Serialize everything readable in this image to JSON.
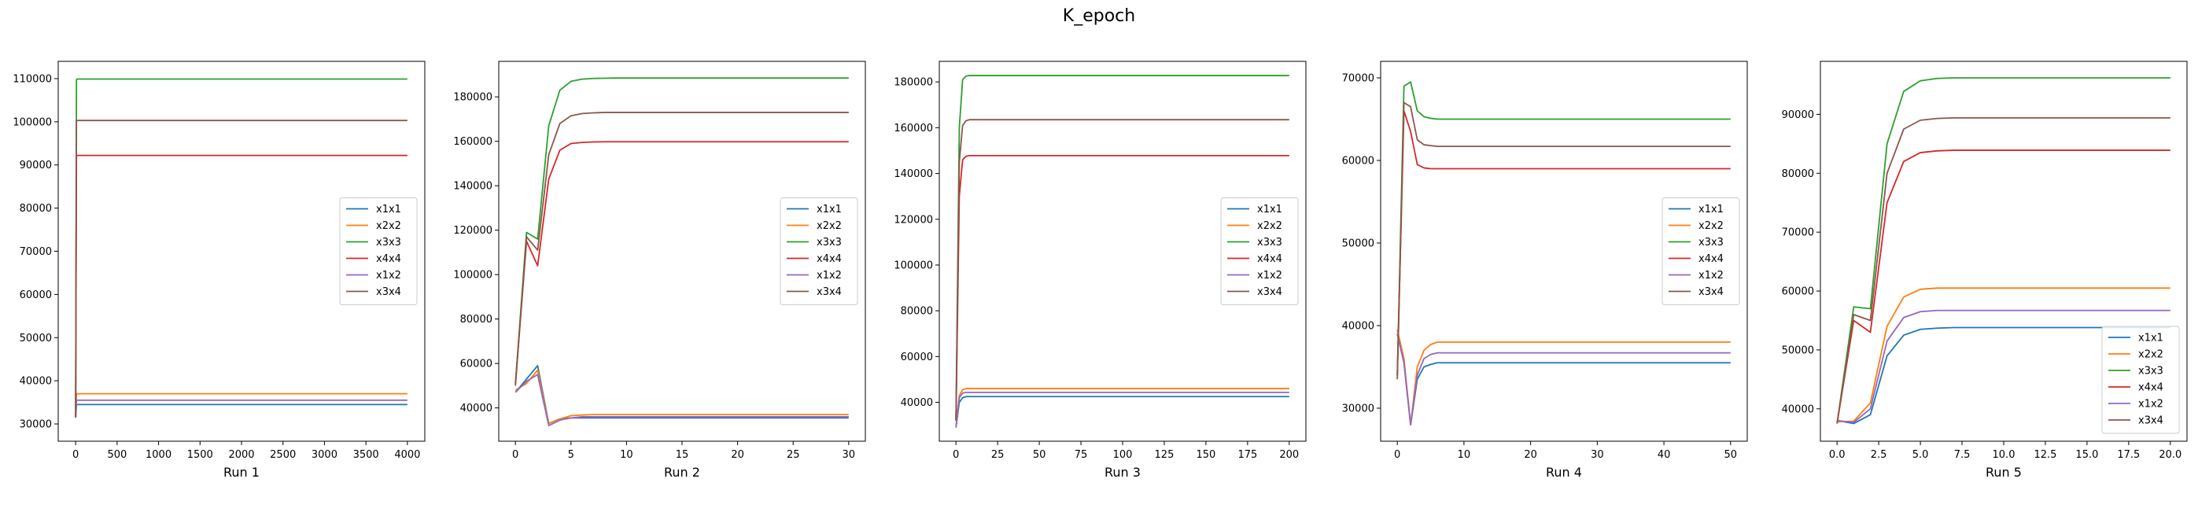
{
  "figure": {
    "title": "K_epoch"
  },
  "colors": {
    "x1x1": "#1f77b4",
    "x2x2": "#ff7f0e",
    "x3x3": "#2ca02c",
    "x4x4": "#d62728",
    "x1x2": "#9467bd",
    "x3x4": "#8c564b"
  },
  "chart_data": [
    {
      "type": "line",
      "title": "",
      "xlabel": "Run 1",
      "ylabel": "",
      "xlim": [
        -210,
        4210
      ],
      "ylim": [
        26000,
        114000
      ],
      "xticks": [
        0,
        500,
        1000,
        1500,
        2000,
        2500,
        3000,
        3500,
        4000
      ],
      "yticks": [
        30000,
        40000,
        50000,
        60000,
        70000,
        80000,
        90000,
        100000,
        110000
      ],
      "legend_loc": "center-right",
      "series": [
        {
          "name": "x1x1",
          "x": [
            0,
            10,
            20,
            4000
          ],
          "y": [
            31500,
            34500,
            34500,
            34500
          ]
        },
        {
          "name": "x2x2",
          "x": [
            0,
            10,
            20,
            4000
          ],
          "y": [
            32000,
            37000,
            37000,
            37000
          ]
        },
        {
          "name": "x3x3",
          "x": [
            0,
            10,
            20,
            4000
          ],
          "y": [
            31500,
            109800,
            109900,
            109900
          ]
        },
        {
          "name": "x4x4",
          "x": [
            0,
            10,
            20,
            4000
          ],
          "y": [
            31500,
            92200,
            92200,
            92200
          ]
        },
        {
          "name": "x1x2",
          "x": [
            0,
            10,
            20,
            4000
          ],
          "y": [
            31500,
            35500,
            35500,
            35500
          ]
        },
        {
          "name": "x3x4",
          "x": [
            0,
            10,
            20,
            4000
          ],
          "y": [
            31500,
            100200,
            100300,
            100300
          ]
        }
      ]
    },
    {
      "type": "line",
      "title": "",
      "xlabel": "Run 2",
      "ylabel": "",
      "xlim": [
        -1.5,
        31.5
      ],
      "ylim": [
        25000,
        196000
      ],
      "xticks": [
        0,
        5,
        10,
        15,
        20,
        25,
        30
      ],
      "yticks": [
        40000,
        60000,
        80000,
        100000,
        120000,
        140000,
        160000,
        180000
      ],
      "legend_loc": "center-right",
      "series": [
        {
          "name": "x1x1",
          "x": [
            0,
            1,
            2,
            3,
            4,
            5,
            6,
            7,
            8,
            9,
            10,
            30
          ],
          "y": [
            47000,
            53000,
            59000,
            33000,
            35000,
            35500,
            35500,
            35500,
            35500,
            35500,
            35500,
            35500
          ]
        },
        {
          "name": "x2x2",
          "x": [
            0,
            1,
            2,
            3,
            4,
            5,
            6,
            7,
            8,
            9,
            10,
            30
          ],
          "y": [
            48000,
            51000,
            57000,
            33000,
            35000,
            36500,
            36800,
            37000,
            37000,
            37000,
            37000,
            37000
          ]
        },
        {
          "name": "x3x3",
          "x": [
            0,
            1,
            2,
            3,
            4,
            5,
            6,
            7,
            8,
            9,
            10,
            30
          ],
          "y": [
            51000,
            119000,
            116000,
            167000,
            183000,
            187000,
            188000,
            188300,
            188400,
            188500,
            188500,
            188500
          ]
        },
        {
          "name": "x4x4",
          "x": [
            0,
            1,
            2,
            3,
            4,
            5,
            6,
            7,
            8,
            9,
            10,
            30
          ],
          "y": [
            51000,
            115000,
            104000,
            143000,
            156000,
            159000,
            159500,
            159700,
            159800,
            159800,
            159800,
            159800
          ]
        },
        {
          "name": "x1x2",
          "x": [
            0,
            1,
            2,
            3,
            4,
            5,
            6,
            7,
            8,
            9,
            10,
            30
          ],
          "y": [
            47000,
            52000,
            55000,
            32000,
            34500,
            35500,
            36000,
            36000,
            36000,
            36000,
            36000,
            36000
          ]
        },
        {
          "name": "x3x4",
          "x": [
            0,
            1,
            2,
            3,
            4,
            5,
            6,
            7,
            8,
            9,
            10,
            30
          ],
          "y": [
            50000,
            117000,
            111000,
            154000,
            168000,
            171500,
            172500,
            172800,
            173000,
            173000,
            173000,
            173000
          ]
        }
      ]
    },
    {
      "type": "line",
      "title": "",
      "xlabel": "Run 3",
      "ylabel": "",
      "xlim": [
        -10,
        210
      ],
      "ylim": [
        23000,
        189000
      ],
      "xticks": [
        0,
        25,
        50,
        75,
        100,
        125,
        150,
        175,
        200
      ],
      "yticks": [
        40000,
        60000,
        80000,
        100000,
        120000,
        140000,
        160000,
        180000
      ],
      "legend_loc": "center-right",
      "series": [
        {
          "name": "x1x1",
          "x": [
            0,
            2,
            4,
            6,
            8,
            10,
            200
          ],
          "y": [
            29000,
            40000,
            42000,
            42500,
            42500,
            42500,
            42500
          ]
        },
        {
          "name": "x2x2",
          "x": [
            0,
            2,
            4,
            6,
            8,
            10,
            200
          ],
          "y": [
            29000,
            43000,
            45500,
            46000,
            46000,
            46000,
            46000
          ]
        },
        {
          "name": "x3x3",
          "x": [
            0,
            2,
            4,
            6,
            8,
            10,
            200
          ],
          "y": [
            32000,
            160000,
            181000,
            182500,
            182800,
            182800,
            182800
          ]
        },
        {
          "name": "x4x4",
          "x": [
            0,
            2,
            4,
            6,
            8,
            10,
            200
          ],
          "y": [
            32000,
            130000,
            146000,
            147500,
            147800,
            147800,
            147800
          ]
        },
        {
          "name": "x1x2",
          "x": [
            0,
            2,
            4,
            6,
            8,
            10,
            200
          ],
          "y": [
            29000,
            42000,
            44000,
            44300,
            44300,
            44300,
            44300
          ]
        },
        {
          "name": "x3x4",
          "x": [
            0,
            2,
            4,
            6,
            8,
            10,
            200
          ],
          "y": [
            32000,
            145000,
            161000,
            163000,
            163500,
            163500,
            163500
          ]
        }
      ]
    },
    {
      "type": "line",
      "title": "",
      "xlabel": "Run 4",
      "ylabel": "",
      "xlim": [
        -2.5,
        52.5
      ],
      "ylim": [
        26000,
        72000
      ],
      "xticks": [
        0,
        10,
        20,
        30,
        40,
        50
      ],
      "yticks": [
        30000,
        40000,
        50000,
        60000,
        70000
      ],
      "legend_loc": "center-right",
      "series": [
        {
          "name": "x1x1",
          "x": [
            0,
            1,
            2,
            3,
            4,
            5,
            6,
            7,
            8,
            9,
            10,
            50
          ],
          "y": [
            39000,
            35500,
            28000,
            33500,
            35000,
            35300,
            35500,
            35500,
            35500,
            35500,
            35500,
            35500
          ]
        },
        {
          "name": "x2x2",
          "x": [
            0,
            1,
            2,
            3,
            4,
            5,
            6,
            7,
            8,
            9,
            10,
            50
          ],
          "y": [
            39500,
            36000,
            28000,
            35000,
            37000,
            37700,
            38000,
            38000,
            38000,
            38000,
            38000,
            38000
          ]
        },
        {
          "name": "x3x3",
          "x": [
            0,
            1,
            2,
            3,
            4,
            5,
            6,
            7,
            8,
            9,
            10,
            50
          ],
          "y": [
            34000,
            69000,
            69500,
            66000,
            65300,
            65100,
            65000,
            65000,
            65000,
            65000,
            65000,
            65000
          ]
        },
        {
          "name": "x4x4",
          "x": [
            0,
            1,
            2,
            3,
            4,
            5,
            6,
            7,
            8,
            9,
            10,
            50
          ],
          "y": [
            34000,
            66000,
            63500,
            59500,
            59100,
            59000,
            59000,
            59000,
            59000,
            59000,
            59000,
            59000
          ]
        },
        {
          "name": "x1x2",
          "x": [
            0,
            1,
            2,
            3,
            4,
            5,
            6,
            7,
            8,
            9,
            10,
            50
          ],
          "y": [
            39000,
            35500,
            28000,
            34000,
            36000,
            36500,
            36700,
            36700,
            36700,
            36700,
            36700,
            36700
          ]
        },
        {
          "name": "x3x4",
          "x": [
            0,
            1,
            2,
            3,
            4,
            5,
            6,
            7,
            8,
            9,
            10,
            50
          ],
          "y": [
            33500,
            67000,
            66500,
            62500,
            61900,
            61800,
            61700,
            61700,
            61700,
            61700,
            61700,
            61700
          ]
        }
      ]
    },
    {
      "type": "line",
      "title": "",
      "xlabel": "Run 5",
      "ylabel": "",
      "xlim": [
        -1.0,
        21.0
      ],
      "ylim": [
        34500,
        99000
      ],
      "xticks": [
        0.0,
        2.5,
        5.0,
        7.5,
        10.0,
        12.5,
        15.0,
        17.5,
        20.0
      ],
      "xtick_labels": [
        "0.0",
        "2.5",
        "5.0",
        "7.5",
        "10.0",
        "12.5",
        "15.0",
        "17.5",
        "20.0"
      ],
      "yticks": [
        40000,
        50000,
        60000,
        70000,
        80000,
        90000
      ],
      "legend_loc": "bottom-right",
      "series": [
        {
          "name": "x1x1",
          "x": [
            0,
            1,
            2,
            3,
            4,
            5,
            6,
            7,
            8,
            9,
            10,
            20
          ],
          "y": [
            38000,
            37500,
            39000,
            49000,
            52500,
            53500,
            53700,
            53800,
            53800,
            53800,
            53800,
            53800
          ]
        },
        {
          "name": "x2x2",
          "x": [
            0,
            1,
            2,
            3,
            4,
            5,
            6,
            7,
            8,
            9,
            10,
            20
          ],
          "y": [
            37800,
            37900,
            41000,
            54000,
            59000,
            60300,
            60500,
            60500,
            60500,
            60500,
            60500,
            60500
          ]
        },
        {
          "name": "x3x3",
          "x": [
            0,
            1,
            2,
            3,
            4,
            5,
            6,
            7,
            8,
            9,
            10,
            20
          ],
          "y": [
            37500,
            57300,
            57000,
            85000,
            93900,
            95700,
            96100,
            96200,
            96200,
            96200,
            96200,
            96200
          ]
        },
        {
          "name": "x4x4",
          "x": [
            0,
            1,
            2,
            3,
            4,
            5,
            6,
            7,
            8,
            9,
            10,
            20
          ],
          "y": [
            37500,
            55000,
            53000,
            75000,
            82000,
            83500,
            83800,
            83900,
            83900,
            83900,
            83900,
            83900
          ]
        },
        {
          "name": "x1x2",
          "x": [
            0,
            1,
            2,
            3,
            4,
            5,
            6,
            7,
            8,
            9,
            10,
            20
          ],
          "y": [
            38000,
            37700,
            40000,
            51500,
            55500,
            56500,
            56700,
            56700,
            56700,
            56700,
            56700,
            56700
          ]
        },
        {
          "name": "x3x4",
          "x": [
            0,
            1,
            2,
            3,
            4,
            5,
            6,
            7,
            8,
            9,
            10,
            20
          ],
          "y": [
            37500,
            56000,
            55000,
            80000,
            87500,
            89000,
            89300,
            89400,
            89400,
            89400,
            89400,
            89400
          ]
        }
      ]
    }
  ]
}
